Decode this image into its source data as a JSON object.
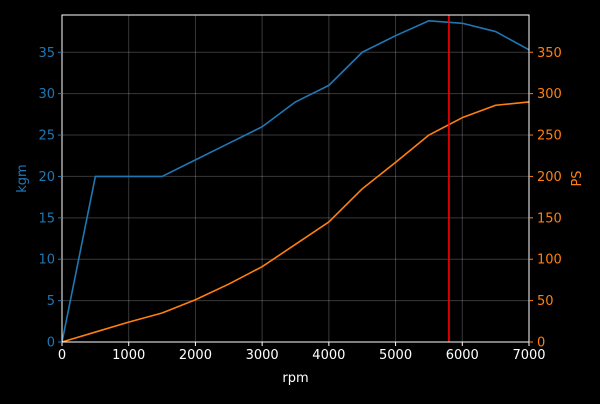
{
  "chart_data": {
    "type": "line",
    "title": "",
    "xlabel": "rpm",
    "ylabel_left": "kgm",
    "ylabel_right": "PS",
    "xlim": [
      0,
      7000
    ],
    "ylim_left": [
      0,
      39.5
    ],
    "ylim_right": [
      0,
      395
    ],
    "grid": true,
    "background": "#000000",
    "x_ticks": [
      0,
      1000,
      2000,
      3000,
      4000,
      5000,
      6000,
      7000
    ],
    "y_ticks_left": [
      0,
      5,
      10,
      15,
      20,
      25,
      30,
      35
    ],
    "y_ticks_right": [
      0,
      50,
      100,
      150,
      200,
      250,
      300,
      350
    ],
    "series": [
      {
        "axis": "left",
        "color": "#1f77b4",
        "x": [
          0,
          500,
          1000,
          1500,
          2000,
          2500,
          3000,
          3500,
          4000,
          4500,
          5000,
          5500,
          6000,
          6500,
          7000
        ],
        "y": [
          0,
          20,
          20,
          20,
          22,
          24,
          26,
          29,
          31,
          35,
          37,
          38.8,
          38.5,
          37.5,
          35.3
        ]
      },
      {
        "axis": "right",
        "color": "#ff7f0e",
        "x": [
          0,
          500,
          1000,
          1500,
          2000,
          2500,
          3000,
          3500,
          4000,
          4500,
          5000,
          5500,
          6000,
          6500,
          7000
        ],
        "y": [
          0,
          12,
          24,
          35,
          51,
          70,
          91,
          118,
          145,
          185,
          217,
          250,
          271,
          286,
          290
        ]
      }
    ],
    "vline": {
      "x": 5800,
      "color": "#ff0000"
    }
  }
}
